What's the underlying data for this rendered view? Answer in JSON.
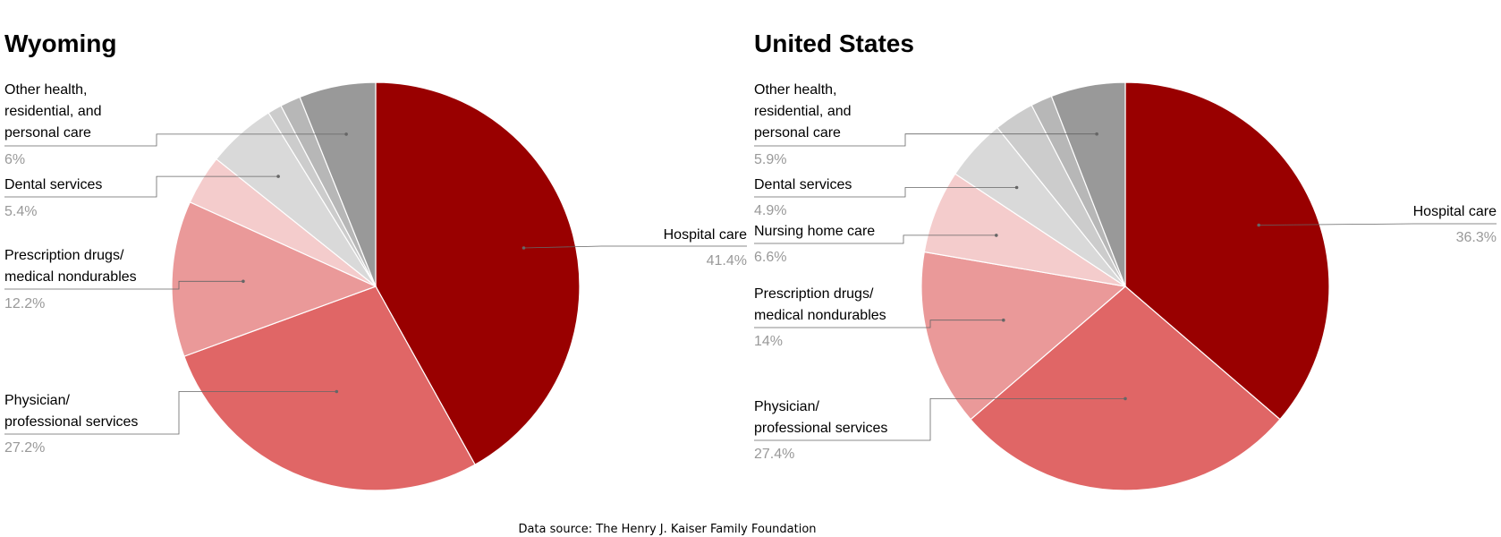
{
  "chart_data": [
    {
      "type": "pie",
      "title": "Wyoming",
      "slices": [
        {
          "label": "Hospital care",
          "value": 41.4,
          "display": "41.4%",
          "color": "#990000"
        },
        {
          "label": "Physician/ professional services",
          "value": 27.2,
          "display": "27.2%",
          "color": "#e06666"
        },
        {
          "label": "Prescription drugs/ medical nondurables",
          "value": 12.2,
          "display": "12.2%",
          "color": "#ea9999"
        },
        {
          "label": "",
          "value": 3.9,
          "display": "",
          "color": "#f4cccc"
        },
        {
          "label": "Dental services",
          "value": 5.4,
          "display": "5.4%",
          "color": "#d9d9d9"
        },
        {
          "label": "",
          "value": 1.1,
          "display": "",
          "color": "#cccccc"
        },
        {
          "label": "",
          "value": 1.6,
          "display": "",
          "color": "#b7b7b7"
        },
        {
          "label": "Other health, residential, and personal care",
          "value": 6.0,
          "display": "6%",
          "color": "#999999"
        }
      ],
      "legend": "none"
    },
    {
      "type": "pie",
      "title": "United States",
      "slices": [
        {
          "label": "Hospital care",
          "value": 36.3,
          "display": "36.3%",
          "color": "#990000"
        },
        {
          "label": "Physician/ professional services",
          "value": 27.4,
          "display": "27.4%",
          "color": "#e06666"
        },
        {
          "label": "Prescription drugs/ medical nondurables",
          "value": 14.0,
          "display": "14%",
          "color": "#ea9999"
        },
        {
          "label": "Nursing home care",
          "value": 6.6,
          "display": "6.6%",
          "color": "#f4cccc"
        },
        {
          "label": "Dental services",
          "value": 4.9,
          "display": "4.9%",
          "color": "#d9d9d9"
        },
        {
          "label": "",
          "value": 3.2,
          "display": "",
          "color": "#cccccc"
        },
        {
          "label": "",
          "value": 1.7,
          "display": "",
          "color": "#b7b7b7"
        },
        {
          "label": "Other health, residential, and personal care",
          "value": 5.9,
          "display": "5.9%",
          "color": "#999999"
        }
      ],
      "legend": "none"
    }
  ],
  "source": "Data source: The Henry J. Kaiser Family Foundation"
}
